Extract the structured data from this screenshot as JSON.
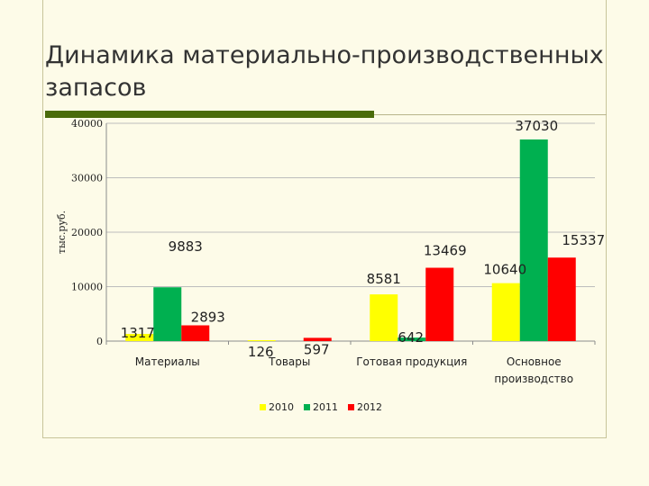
{
  "title": "Динамика материально-производственных запасов",
  "chart_data": {
    "type": "bar",
    "ylabel": "тыс.руб.",
    "ylim": [
      0,
      40000
    ],
    "yticks": [
      "0",
      "10000",
      "20000",
      "30000",
      "40000"
    ],
    "categories": [
      "Материалы",
      "Товары",
      "Готовая продукция",
      "Основное производство"
    ],
    "series": [
      {
        "name": "2010",
        "color": "#ffff00",
        "values": [
          1317,
          126,
          8581,
          10640
        ]
      },
      {
        "name": "2011",
        "color": "#00b050",
        "values": [
          9883,
          null,
          642,
          37030
        ]
      },
      {
        "name": "2012",
        "color": "#ff0000",
        "values": [
          2893,
          597,
          13469,
          15337
        ]
      }
    ],
    "legend": "bottom",
    "grid": true
  }
}
